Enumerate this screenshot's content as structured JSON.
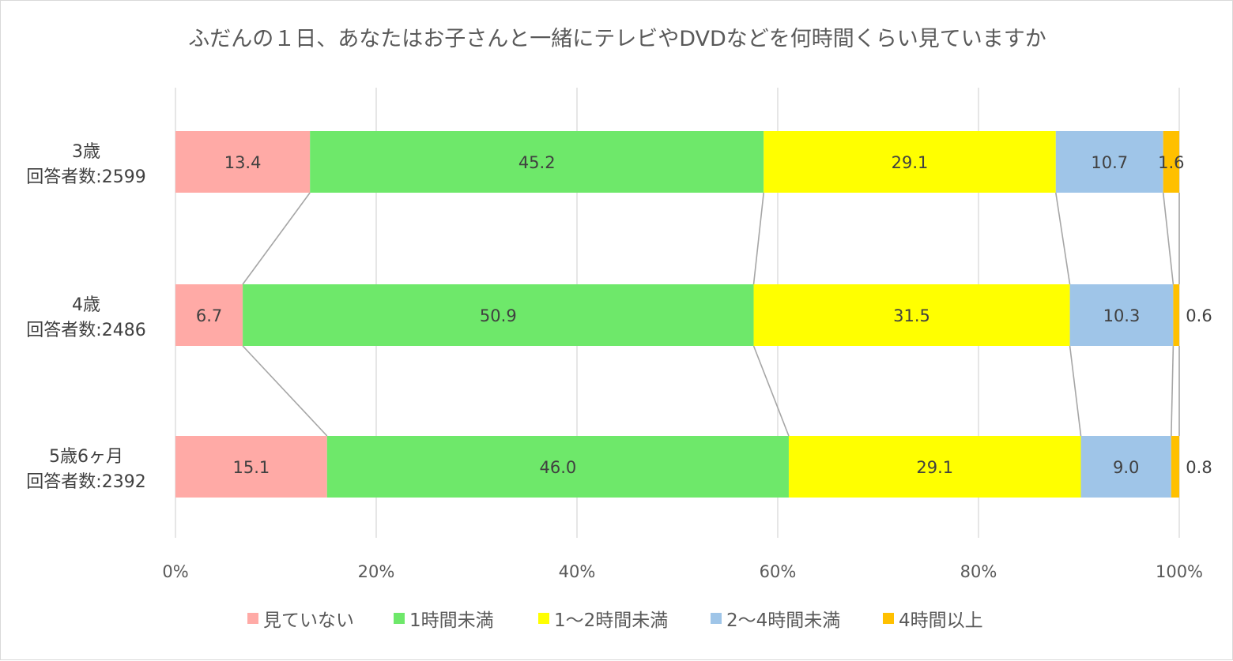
{
  "chart_data": {
    "type": "bar",
    "orientation": "horizontal",
    "stacked": "percent",
    "title": "ふだんの１日、あなたはお子さんと一緒にテレビやDVDなどを何時間くらい見ていますか",
    "categories": [
      [
        "3歳",
        "回答者数:2599"
      ],
      [
        "4歳",
        "回答者数:2486"
      ],
      [
        "5歳6ヶ月",
        "回答者数:2392"
      ]
    ],
    "series": [
      {
        "name": "見ていない",
        "color": "#ffaaa6",
        "values": [
          13.4,
          6.7,
          15.1
        ]
      },
      {
        "name": "1時間未満",
        "color": "#6ee86a",
        "values": [
          45.2,
          50.9,
          46.0
        ]
      },
      {
        "name": "1〜2時間未満",
        "color": "#ffff00",
        "values": [
          29.1,
          31.5,
          29.1
        ]
      },
      {
        "name": "2〜4時間未満",
        "color": "#9fc5e8",
        "values": [
          10.7,
          10.3,
          9.0
        ]
      },
      {
        "name": "4時間以上",
        "color": "#ffc000",
        "values": [
          1.6,
          0.6,
          0.8
        ]
      }
    ],
    "xaxis": {
      "ticks": [
        "0%",
        "20%",
        "40%",
        "60%",
        "80%",
        "100%"
      ],
      "range": [
        0,
        100
      ]
    },
    "grid": "vertical",
    "series_lines": true,
    "legend": "bottom"
  }
}
